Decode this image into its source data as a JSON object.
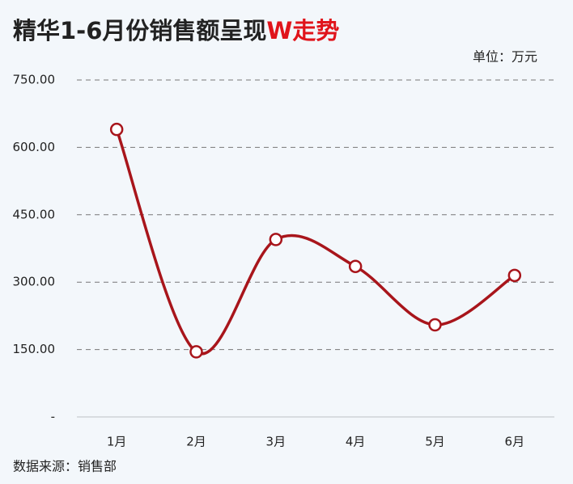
{
  "chart_data": {
    "type": "line",
    "title": "精华1-6月份销售额呈现",
    "title_highlight": "W走势",
    "title_highlight_color": "#e0141b",
    "subtitle": "单位：万元",
    "source": "数据来源：销售部",
    "categories": [
      "1月",
      "2月",
      "3月",
      "4月",
      "5月",
      "6月"
    ],
    "series": [
      {
        "name": "销售额",
        "color": "#a8151b",
        "values": [
          640,
          145,
          395,
          335,
          205,
          315
        ]
      }
    ],
    "ylim": [
      0,
      750
    ],
    "yticks": [
      {
        "value": 0,
        "label": "-"
      },
      {
        "value": 150,
        "label": "150.00"
      },
      {
        "value": 300,
        "label": "300.00"
      },
      {
        "value": 450,
        "label": "450.00"
      },
      {
        "value": 600,
        "label": "600.00"
      },
      {
        "value": 750,
        "label": "750.00"
      }
    ],
    "grid": true,
    "smooth": true
  }
}
